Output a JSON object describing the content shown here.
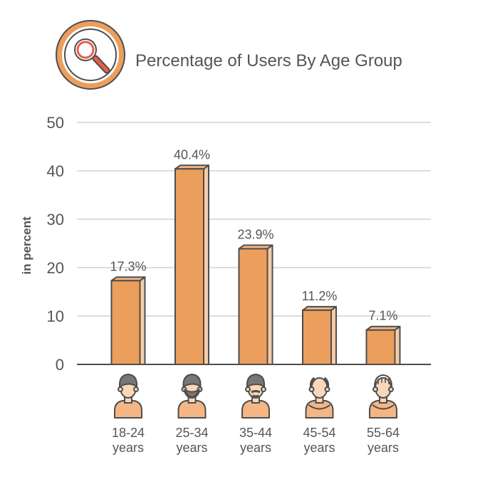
{
  "chart_data": {
    "type": "bar",
    "title": "Percentage of Users By Age Group",
    "ylabel": "in percent",
    "xlabel": "",
    "ylim": [
      0,
      50
    ],
    "yticks": [
      0,
      10,
      20,
      30,
      40,
      50
    ],
    "grid": true,
    "categories": [
      "18-24 years",
      "25-34 years",
      "35-44 years",
      "45-54 years",
      "55-64 years"
    ],
    "category_lines": [
      [
        "18-24",
        "years"
      ],
      [
        "25-34",
        "years"
      ],
      [
        "35-44",
        "years"
      ],
      [
        "45-54",
        "years"
      ],
      [
        "55-64",
        "years"
      ]
    ],
    "values": [
      17.3,
      40.4,
      23.9,
      11.2,
      7.1
    ],
    "value_labels": [
      "17.3%",
      "40.4%",
      "23.9%",
      "11.2%",
      "7.1%"
    ]
  },
  "icons": {
    "title_icon": "magnifier-icon",
    "category_icons": [
      "young-man-icon",
      "bearded-man-icon",
      "mustache-man-icon",
      "balding-man-icon",
      "elderly-man-icon"
    ]
  },
  "colors": {
    "bar_front": "#EC9E5C",
    "bar_side": "#F6CDA8",
    "bar_top": "#F4B684",
    "outline": "#4D4D4D",
    "grid": "#DDDDDD",
    "text": "#555555",
    "icon_ring": "#EC9E5C",
    "icon_handle": "#E85E47"
  }
}
